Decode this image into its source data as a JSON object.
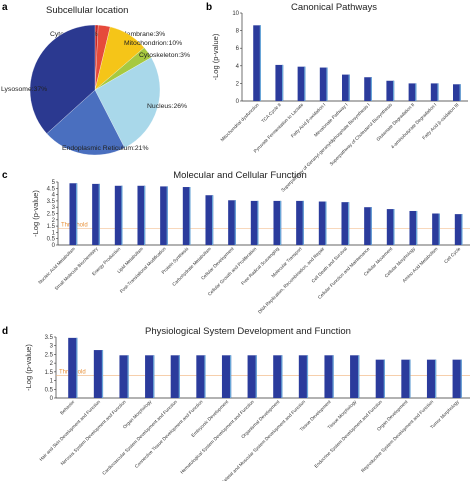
{
  "panels": {
    "a": {
      "letter": "a",
      "title": "Subcellular location"
    },
    "b": {
      "letter": "b",
      "title": "Canonical Pathways"
    },
    "c": {
      "letter": "c",
      "title": "Molecular and Cellular Function"
    },
    "d": {
      "letter": "d",
      "title": "Physiological System Development and Function"
    }
  },
  "chart_data": [
    {
      "panel": "a",
      "type": "pie",
      "title": "Subcellular location",
      "slices": [
        {
          "label": "Cytoplasm:<1%",
          "value": 0.8,
          "color": "#c62828"
        },
        {
          "label": "Membrane:3%",
          "value": 3,
          "color": "#e64a3b"
        },
        {
          "label": "Mitochondrion:10%",
          "value": 10,
          "color": "#f5c518"
        },
        {
          "label": "Cytoskeleton:3%",
          "value": 3,
          "color": "#a7c940"
        },
        {
          "label": "Nucleus:26%",
          "value": 26,
          "color": "#a9d8ea"
        },
        {
          "label": "Endoplasmic Reticulum:21%",
          "value": 21,
          "color": "#4a6fbf"
        },
        {
          "label": "Lysosome:37%",
          "value": 37,
          "color": "#2b3990"
        }
      ]
    },
    {
      "panel": "b",
      "type": "bar",
      "title": "Canonical Pathways",
      "ylabel": "-Log (p-value)",
      "ylim": [
        0,
        10
      ],
      "yticks": [
        0,
        2,
        4,
        6,
        8,
        10
      ],
      "categories": [
        "Mitochondrial dysfunction",
        "TCA Cycle II",
        "Pyruvate Fermentation to Lactate",
        "Fatty Acid β-oxidation I",
        "Mevalonate Pathway I",
        "Superpathway of Geranyl-geranyldiphosphate Biosynthesis I",
        "Superpathway of Cholesterol Biosynthesis",
        "Glutamate Degradation II",
        "4-aminobutyrate Degradation I",
        "Fatty Acid β-oxidation III"
      ],
      "values": [
        8.6,
        4.1,
        3.9,
        3.8,
        3.0,
        2.7,
        2.3,
        2.0,
        2.0,
        1.9
      ],
      "bar_color": "#2b3b9c"
    },
    {
      "panel": "c",
      "type": "bar",
      "title": "Molecular and Cellular Function",
      "ylabel": "-Log (p-value)",
      "ylim": [
        0,
        5
      ],
      "yticks": [
        0,
        0.5,
        1,
        1.5,
        2,
        2.5,
        3,
        3.5,
        4,
        4.5,
        5
      ],
      "threshold": {
        "label": "Threshold",
        "value": 1.3
      },
      "categories": [
        "Nucleic Acid Metabolism",
        "Small Molecule Biochemistry",
        "Energy Production",
        "Lipid Metabolism",
        "Post-Translational Modification",
        "Protein Synthesis",
        "Carbohydrate Metabolism",
        "Cellular Development",
        "Cellular Growth and Proliferation",
        "Free Radical Scavenging",
        "Molecular Transport",
        "DNA Replication, Recombination, and Repair",
        "Cell Death and Survival",
        "Cellular Function and Maintenance",
        "Cellular Movement",
        "Cellular Morphology",
        "Amino Acid Metabolism",
        "Cell Cycle"
      ],
      "values": [
        4.9,
        4.85,
        4.7,
        4.7,
        4.65,
        4.6,
        3.95,
        3.55,
        3.5,
        3.5,
        3.5,
        3.45,
        3.4,
        3.0,
        2.85,
        2.7,
        2.5,
        2.45
      ],
      "bar_color": "#2b3b9c"
    },
    {
      "panel": "d",
      "type": "bar",
      "title": "Physiological System Development and Function",
      "ylabel": "-Log (p-value)",
      "ylim": [
        0,
        3.5
      ],
      "yticks": [
        0,
        0.5,
        1,
        1.5,
        2,
        2.5,
        3,
        3.5
      ],
      "threshold": {
        "label": "Threshold",
        "value": 1.3
      },
      "categories": [
        "Behavior",
        "Hair and Skin Development and Function",
        "Nervous System Development and Function",
        "Organ Morphology",
        "Cardiovascular System Development and Function",
        "Connective Tissue Development and Function",
        "Embryonic Development",
        "Hematological System Development and Function",
        "Organismal Development",
        "Skeletal and Muscular System Development and Function",
        "Tissue Development",
        "Tissue Morphology",
        "Endocrine System Development and Function",
        "Organ Development",
        "Reproductive System Development and Function",
        "Tumor Morphology"
      ],
      "values": [
        3.45,
        2.75,
        2.45,
        2.45,
        2.45,
        2.45,
        2.45,
        2.45,
        2.45,
        2.45,
        2.45,
        2.45,
        2.2,
        2.2,
        2.2,
        2.2
      ],
      "bar_color": "#2b3b9c"
    }
  ]
}
